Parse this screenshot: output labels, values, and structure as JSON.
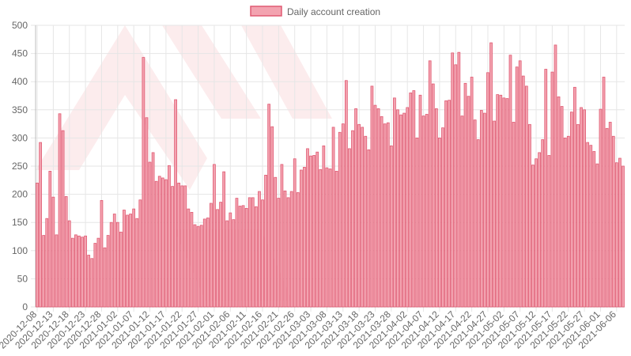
{
  "legend": {
    "label": "Daily account creation"
  },
  "colors": {
    "bar_fill": "#f3a3b0",
    "bar_stroke": "#e05a72",
    "grid": "#e6e6e6",
    "axis": "#bdbdbd",
    "watermark": "#fbe4e6"
  },
  "chart_data": {
    "type": "bar",
    "title": "",
    "xlabel": "",
    "ylabel": "",
    "ylim": [
      0,
      500
    ],
    "y_ticks": [
      0,
      50,
      100,
      150,
      200,
      250,
      300,
      350,
      400,
      450,
      500
    ],
    "grid": true,
    "legend_position": "top-center",
    "x_tick_labels": [
      "2020-12-08",
      "2020-12-13",
      "2020-12-18",
      "2020-12-23",
      "2020-12-28",
      "2021-01-02",
      "2021-01-07",
      "2021-01-12",
      "2021-01-17",
      "2021-01-22",
      "2021-01-27",
      "2021-02-01",
      "2021-02-06",
      "2021-02-11",
      "2021-02-16",
      "2021-02-21",
      "2021-02-26",
      "2021-03-03",
      "2021-03-08",
      "2021-03-13",
      "2021-03-18",
      "2021-03-23",
      "2021-03-28",
      "2021-04-02",
      "2021-04-07",
      "2021-04-12",
      "2021-04-17",
      "2021-04-22",
      "2021-04-27",
      "2021-05-02",
      "2021-05-07",
      "2021-05-12",
      "2021-05-17",
      "2021-05-22",
      "2021-05-27",
      "2021-06-01",
      "2021-06-06"
    ],
    "series": [
      {
        "name": "Daily account creation",
        "values": [
          220,
          292,
          127,
          157,
          241,
          195,
          128,
          343,
          313,
          196,
          153,
          122,
          128,
          126,
          124,
          126,
          92,
          86,
          113,
          122,
          189,
          105,
          127,
          150,
          165,
          150,
          133,
          172,
          163,
          165,
          174,
          157,
          190,
          443,
          336,
          257,
          274,
          223,
          232,
          229,
          226,
          251,
          214,
          368,
          220,
          215,
          215,
          174,
          168,
          146,
          143,
          145,
          156,
          158,
          184,
          253,
          173,
          186,
          240,
          153,
          167,
          155,
          193,
          179,
          180,
          175,
          194,
          194,
          178,
          205,
          190,
          234,
          360,
          320,
          230,
          193,
          253,
          206,
          194,
          205,
          263,
          203,
          243,
          248,
          281,
          268,
          269,
          275,
          244,
          286,
          247,
          245,
          319,
          241,
          310,
          325,
          402,
          281,
          313,
          352,
          324,
          319,
          303,
          279,
          392,
          358,
          352,
          338,
          325,
          327,
          286,
          371,
          350,
          341,
          344,
          354,
          380,
          384,
          300,
          376,
          339,
          342,
          437,
          396,
          352,
          300,
          318,
          366,
          367,
          451,
          430,
          452,
          339,
          397,
          374,
          408,
          332,
          297,
          349,
          344,
          416,
          469,
          330,
          377,
          376,
          371,
          370,
          447,
          328,
          426,
          437,
          410,
          392,
          324,
          252,
          263,
          274,
          297,
          422,
          269,
          417,
          465,
          373,
          356,
          300,
          303,
          346,
          390,
          324,
          354,
          350,
          292,
          287,
          276,
          254,
          351,
          408,
          317,
          328,
          303,
          256,
          264,
          250
        ]
      }
    ]
  }
}
